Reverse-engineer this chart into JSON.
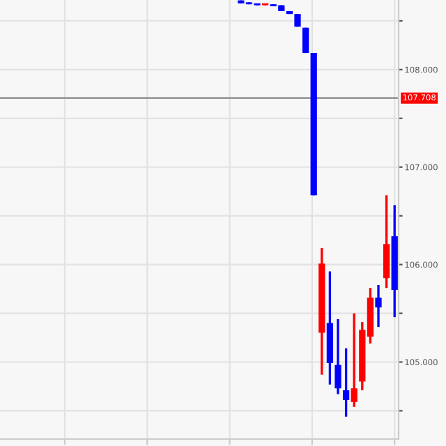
{
  "chart_data": {
    "type": "candlestick",
    "categories": [
      null,
      null,
      null,
      null,
      null,
      null,
      null,
      null,
      null,
      null,
      null,
      null,
      null,
      null,
      null,
      null,
      null,
      null,
      null,
      null
    ],
    "ohlc": [
      [
        108.71,
        108.71,
        108.68,
        108.68
      ],
      [
        108.69,
        108.69,
        108.67,
        108.67
      ],
      [
        108.67,
        108.67,
        108.66,
        108.66
      ],
      [
        108.66,
        108.67,
        108.66,
        108.67
      ],
      [
        108.67,
        108.67,
        108.65,
        108.65
      ],
      [
        108.66,
        108.66,
        108.6,
        108.6
      ],
      [
        108.6,
        108.6,
        108.57,
        108.57
      ],
      [
        108.57,
        108.57,
        108.44,
        108.44
      ],
      [
        108.43,
        108.43,
        108.17,
        108.17
      ],
      [
        108.17,
        108.17,
        106.71,
        106.71
      ],
      [
        105.3,
        106.17,
        104.87,
        106.01
      ],
      [
        105.4,
        105.93,
        104.77,
        104.99
      ],
      [
        104.97,
        105.44,
        104.67,
        104.73
      ],
      [
        104.71,
        105.14,
        104.44,
        104.61
      ],
      [
        104.59,
        105.5,
        104.54,
        104.73
      ],
      [
        104.8,
        105.41,
        104.71,
        105.33
      ],
      [
        105.26,
        105.76,
        105.19,
        105.66
      ],
      [
        105.66,
        105.79,
        105.36,
        105.56
      ],
      [
        105.86,
        106.71,
        105.76,
        106.21
      ],
      [
        106.29,
        106.61,
        105.46,
        105.74
      ]
    ],
    "colors": [
      "#0000ff",
      "#0000ff",
      "#0000ff",
      "#ff0000",
      "#0000ff",
      "#0000ff",
      "#0000ff",
      "#0000ff",
      "#0000ff",
      "#0000ff",
      "#ff0000",
      "#0000ff",
      "#0000ff",
      "#0000ff",
      "#ff0000",
      "#ff0000",
      "#ff0000",
      "#0000ff",
      "#ff0000",
      "#0000ff"
    ],
    "ylim": [
      104.21,
      108.714
    ],
    "yticks": [
      {
        "value": 104.5,
        "label": null
      },
      {
        "value": 105,
        "label": "105.000"
      },
      {
        "value": 105.5,
        "label": null
      },
      {
        "value": 106,
        "label": "106.000"
      },
      {
        "value": 106.5,
        "label": null
      },
      {
        "value": 107,
        "label": "107.000"
      },
      {
        "value": 107.5,
        "label": null
      },
      {
        "value": 108,
        "label": "108.000"
      },
      {
        "value": 108.5,
        "label": null
      }
    ],
    "ref_lines": [
      {
        "axis": "y",
        "value": 107.708,
        "label": "107.708",
        "color": "#999999"
      }
    ],
    "grid": true,
    "tick_labels": "y"
  }
}
